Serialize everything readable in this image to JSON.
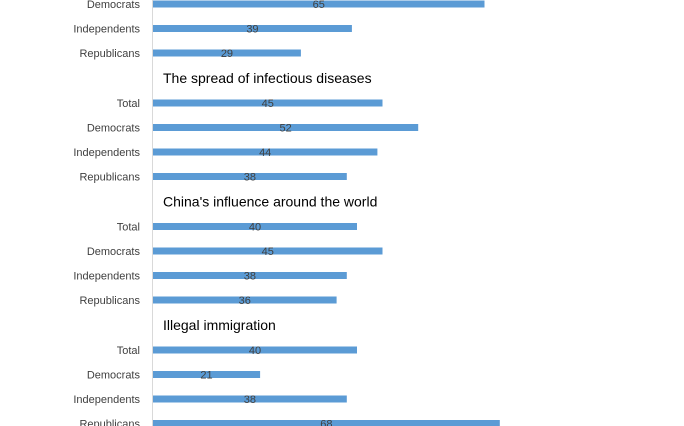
{
  "chart_data": {
    "type": "bar",
    "orientation": "horizontal",
    "bar_color": "#5B9BD5",
    "axis_color": "#D9D9D9",
    "xlim": [
      0,
      100
    ],
    "groups": [
      {
        "title": "",
        "categories": [
          "Democrats",
          "Independents",
          "Republicans"
        ],
        "values": [
          65,
          39,
          29
        ]
      },
      {
        "title": "The spread of infectious diseases",
        "categories": [
          "Total",
          "Democrats",
          "Independents",
          "Republicans"
        ],
        "values": [
          45,
          52,
          44,
          38
        ]
      },
      {
        "title": "China's influence around the world",
        "categories": [
          "Total",
          "Democrats",
          "Independents",
          "Republicans"
        ],
        "values": [
          40,
          45,
          38,
          36
        ]
      },
      {
        "title": "Illegal immigration",
        "categories": [
          "Total",
          "Democrats",
          "Independents",
          "Republicans"
        ],
        "values": [
          40,
          21,
          38,
          68
        ]
      }
    ]
  }
}
